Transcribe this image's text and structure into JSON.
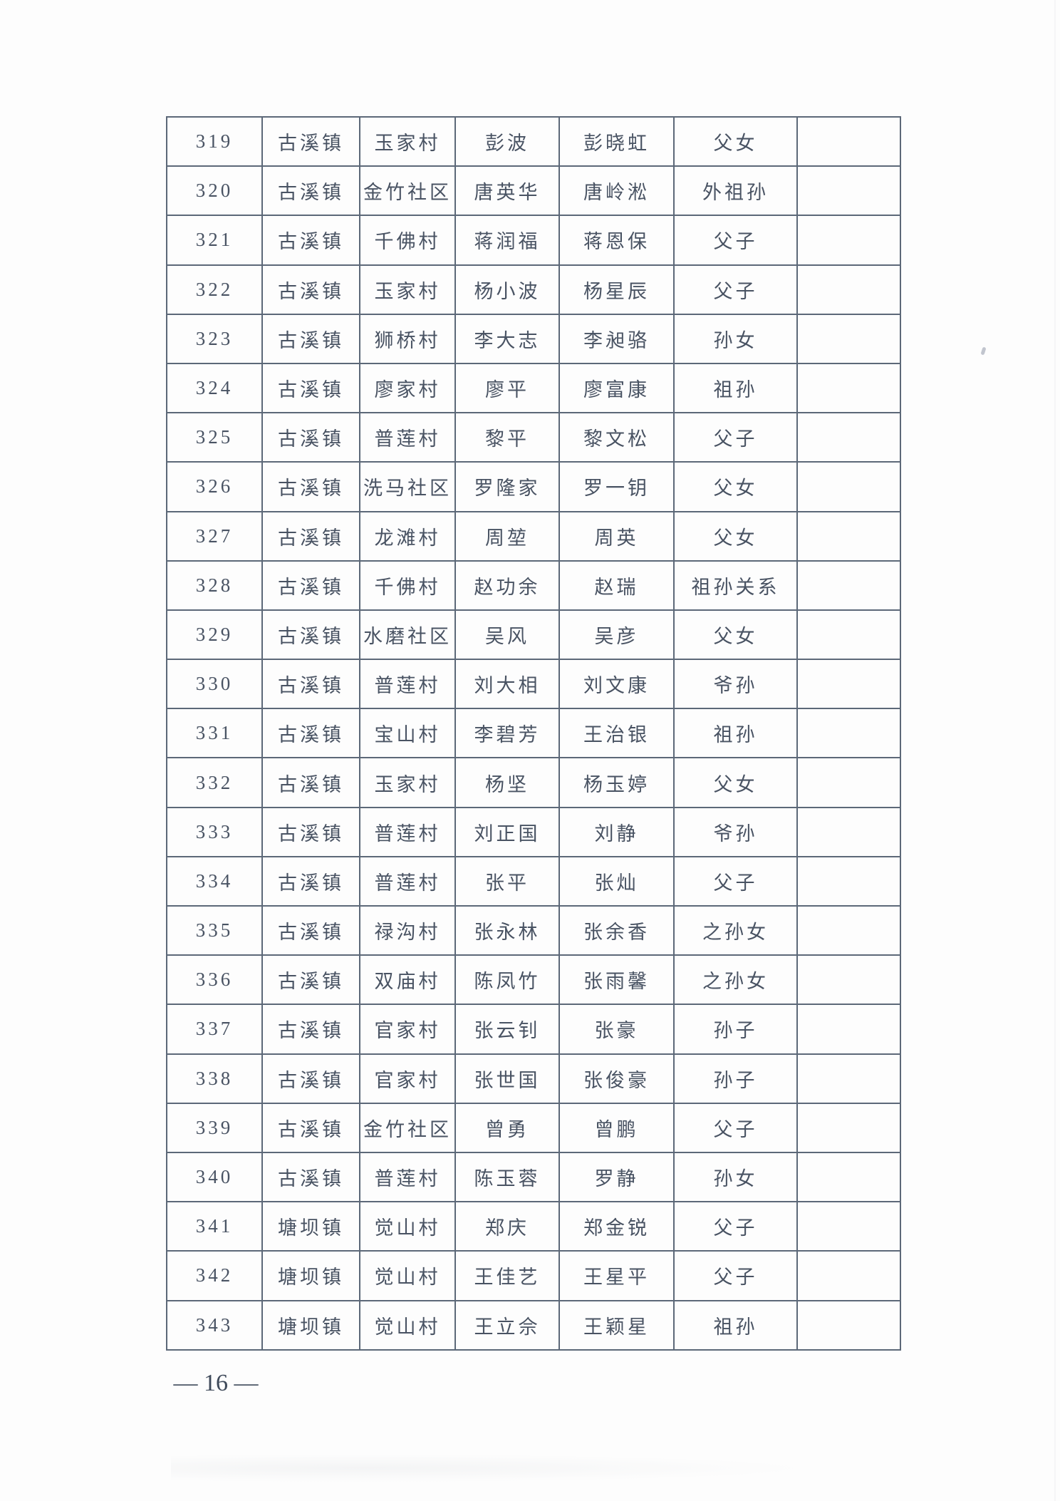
{
  "page": {
    "page_number": "— 16 —"
  },
  "table": {
    "rows": [
      {
        "no": "319",
        "town": "古溪镇",
        "village": "玉家村",
        "guardian": "彭波",
        "child": "彭晓虹",
        "relation": "父女",
        "note": ""
      },
      {
        "no": "320",
        "town": "古溪镇",
        "village": "金竹社区",
        "guardian": "唐英华",
        "child": "唐岭淞",
        "relation": "外祖孙",
        "note": ""
      },
      {
        "no": "321",
        "town": "古溪镇",
        "village": "千佛村",
        "guardian": "蒋润福",
        "child": "蒋恩保",
        "relation": "父子",
        "note": ""
      },
      {
        "no": "322",
        "town": "古溪镇",
        "village": "玉家村",
        "guardian": "杨小波",
        "child": "杨星辰",
        "relation": "父子",
        "note": ""
      },
      {
        "no": "323",
        "town": "古溪镇",
        "village": "狮桥村",
        "guardian": "李大志",
        "child": "李昶骆",
        "relation": "孙女",
        "note": ""
      },
      {
        "no": "324",
        "town": "古溪镇",
        "village": "廖家村",
        "guardian": "廖平",
        "child": "廖富康",
        "relation": "祖孙",
        "note": ""
      },
      {
        "no": "325",
        "town": "古溪镇",
        "village": "普莲村",
        "guardian": "黎平",
        "child": "黎文松",
        "relation": "父子",
        "note": ""
      },
      {
        "no": "326",
        "town": "古溪镇",
        "village": "洗马社区",
        "guardian": "罗隆家",
        "child": "罗一钥",
        "relation": "父女",
        "note": ""
      },
      {
        "no": "327",
        "town": "古溪镇",
        "village": "龙滩村",
        "guardian": "周堃",
        "child": "周英",
        "relation": "父女",
        "note": ""
      },
      {
        "no": "328",
        "town": "古溪镇",
        "village": "千佛村",
        "guardian": "赵功余",
        "child": "赵瑞",
        "relation": "祖孙关系",
        "note": ""
      },
      {
        "no": "329",
        "town": "古溪镇",
        "village": "水磨社区",
        "guardian": "吴风",
        "child": "吴彦",
        "relation": "父女",
        "note": ""
      },
      {
        "no": "330",
        "town": "古溪镇",
        "village": "普莲村",
        "guardian": "刘大相",
        "child": "刘文康",
        "relation": "爷孙",
        "note": ""
      },
      {
        "no": "331",
        "town": "古溪镇",
        "village": "宝山村",
        "guardian": "李碧芳",
        "child": "王治银",
        "relation": "祖孙",
        "note": ""
      },
      {
        "no": "332",
        "town": "古溪镇",
        "village": "玉家村",
        "guardian": "杨坚",
        "child": "杨玉婷",
        "relation": "父女",
        "note": ""
      },
      {
        "no": "333",
        "town": "古溪镇",
        "village": "普莲村",
        "guardian": "刘正国",
        "child": "刘静",
        "relation": "爷孙",
        "note": ""
      },
      {
        "no": "334",
        "town": "古溪镇",
        "village": "普莲村",
        "guardian": "张平",
        "child": "张灿",
        "relation": "父子",
        "note": ""
      },
      {
        "no": "335",
        "town": "古溪镇",
        "village": "禄沟村",
        "guardian": "张永林",
        "child": "张余香",
        "relation": "之孙女",
        "note": ""
      },
      {
        "no": "336",
        "town": "古溪镇",
        "village": "双庙村",
        "guardian": "陈凤竹",
        "child": "张雨馨",
        "relation": "之孙女",
        "note": ""
      },
      {
        "no": "337",
        "town": "古溪镇",
        "village": "官家村",
        "guardian": "张云钊",
        "child": "张豪",
        "relation": "孙子",
        "note": ""
      },
      {
        "no": "338",
        "town": "古溪镇",
        "village": "官家村",
        "guardian": "张世国",
        "child": "张俊豪",
        "relation": "孙子",
        "note": ""
      },
      {
        "no": "339",
        "town": "古溪镇",
        "village": "金竹社区",
        "guardian": "曾勇",
        "child": "曾鹏",
        "relation": "父子",
        "note": ""
      },
      {
        "no": "340",
        "town": "古溪镇",
        "village": "普莲村",
        "guardian": "陈玉蓉",
        "child": "罗静",
        "relation": "孙女",
        "note": ""
      },
      {
        "no": "341",
        "town": "塘坝镇",
        "village": "觉山村",
        "guardian": "郑庆",
        "child": "郑金锐",
        "relation": "父子",
        "note": ""
      },
      {
        "no": "342",
        "town": "塘坝镇",
        "village": "觉山村",
        "guardian": "王佳艺",
        "child": "王星平",
        "relation": "父子",
        "note": ""
      },
      {
        "no": "343",
        "town": "塘坝镇",
        "village": "觉山村",
        "guardian": "王立佘",
        "child": "王颖星",
        "relation": "祖孙",
        "note": ""
      }
    ]
  },
  "colors": {
    "border": "#5c6878",
    "text": "#495363",
    "paper": "#fdfdfd"
  }
}
